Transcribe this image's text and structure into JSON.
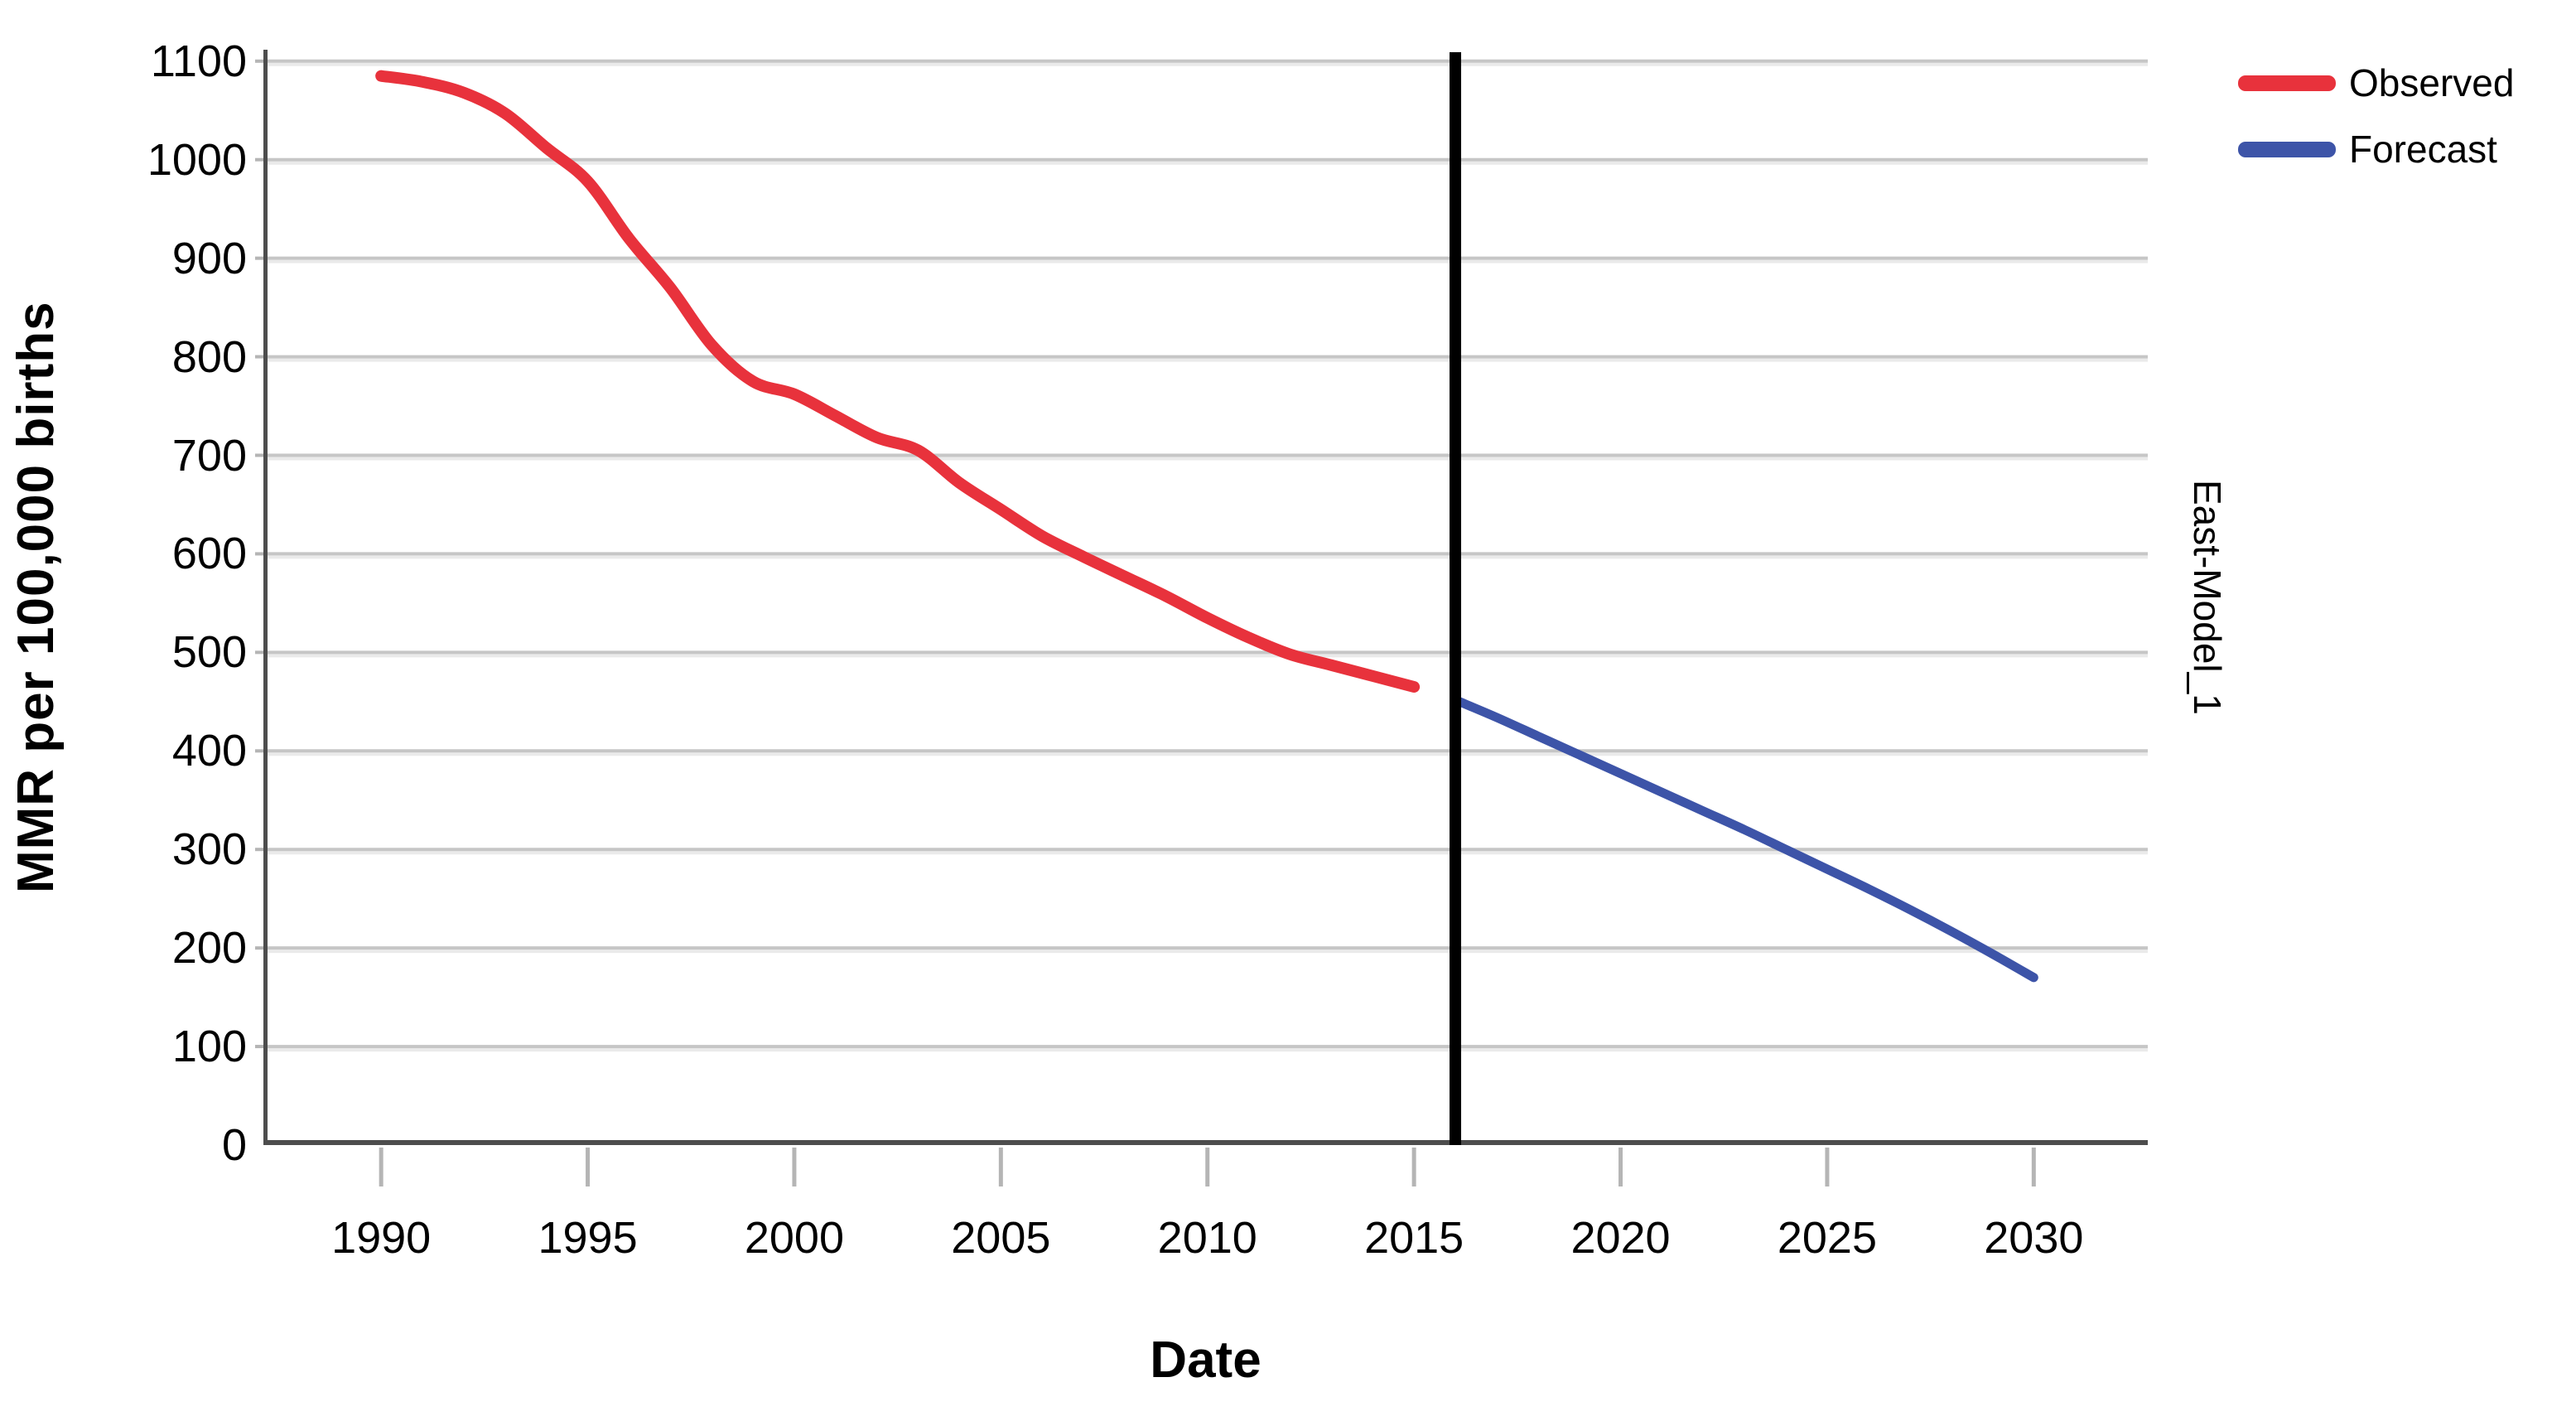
{
  "chart_data": {
    "type": "line",
    "title": "",
    "xlabel": "Date",
    "ylabel": "MMR per 100,000 births",
    "panel_label": "East-Model_1",
    "grid": "horizontal",
    "legend_position": "top-right-outside",
    "background": "#ffffff",
    "xlim": [
      1987.15,
      2032.76
    ],
    "ylim": [
      0,
      1111.6
    ],
    "x_ticks": [
      1990,
      1995,
      2000,
      2005,
      2010,
      2015,
      2020,
      2025,
      2030
    ],
    "y_ticks": [
      0,
      100,
      200,
      300,
      400,
      500,
      600,
      700,
      800,
      900,
      1000,
      1100
    ],
    "forecast_divider_year": 2016,
    "divider_color": "#000000",
    "grid_color": "#c6c6c6",
    "grid_echo_color": "#eaeaea",
    "axis_color": "#4d4d4d",
    "tick_mark_color": "#b5b5b5",
    "series": [
      {
        "name": "Observed",
        "color": "#e8323c",
        "stroke_width": 14,
        "x": [
          1990,
          1991,
          1992,
          1993,
          1994,
          1995,
          1996,
          1997,
          1998,
          1999,
          2000,
          2001,
          2002,
          2003,
          2004,
          2005,
          2006,
          2007,
          2008,
          2009,
          2010,
          2011,
          2012,
          2013,
          2014,
          2015
        ],
        "values": [
          1085,
          1079,
          1068,
          1047,
          1012,
          978,
          920,
          870,
          812,
          775,
          762,
          740,
          718,
          705,
          672,
          645,
          618,
          597,
          577,
          557,
          535,
          515,
          498,
          487,
          476,
          465
        ]
      },
      {
        "name": "Forecast",
        "color": "#3d54a8",
        "stroke_width": 11,
        "x": [
          2016.1,
          2017,
          2018,
          2019,
          2020,
          2021,
          2022,
          2023,
          2024,
          2025,
          2026,
          2027,
          2028,
          2029,
          2030
        ],
        "values": [
          450,
          434,
          415,
          396,
          377,
          358,
          339,
          320,
          300,
          280,
          260,
          239,
          217,
          194,
          170
        ]
      }
    ]
  }
}
